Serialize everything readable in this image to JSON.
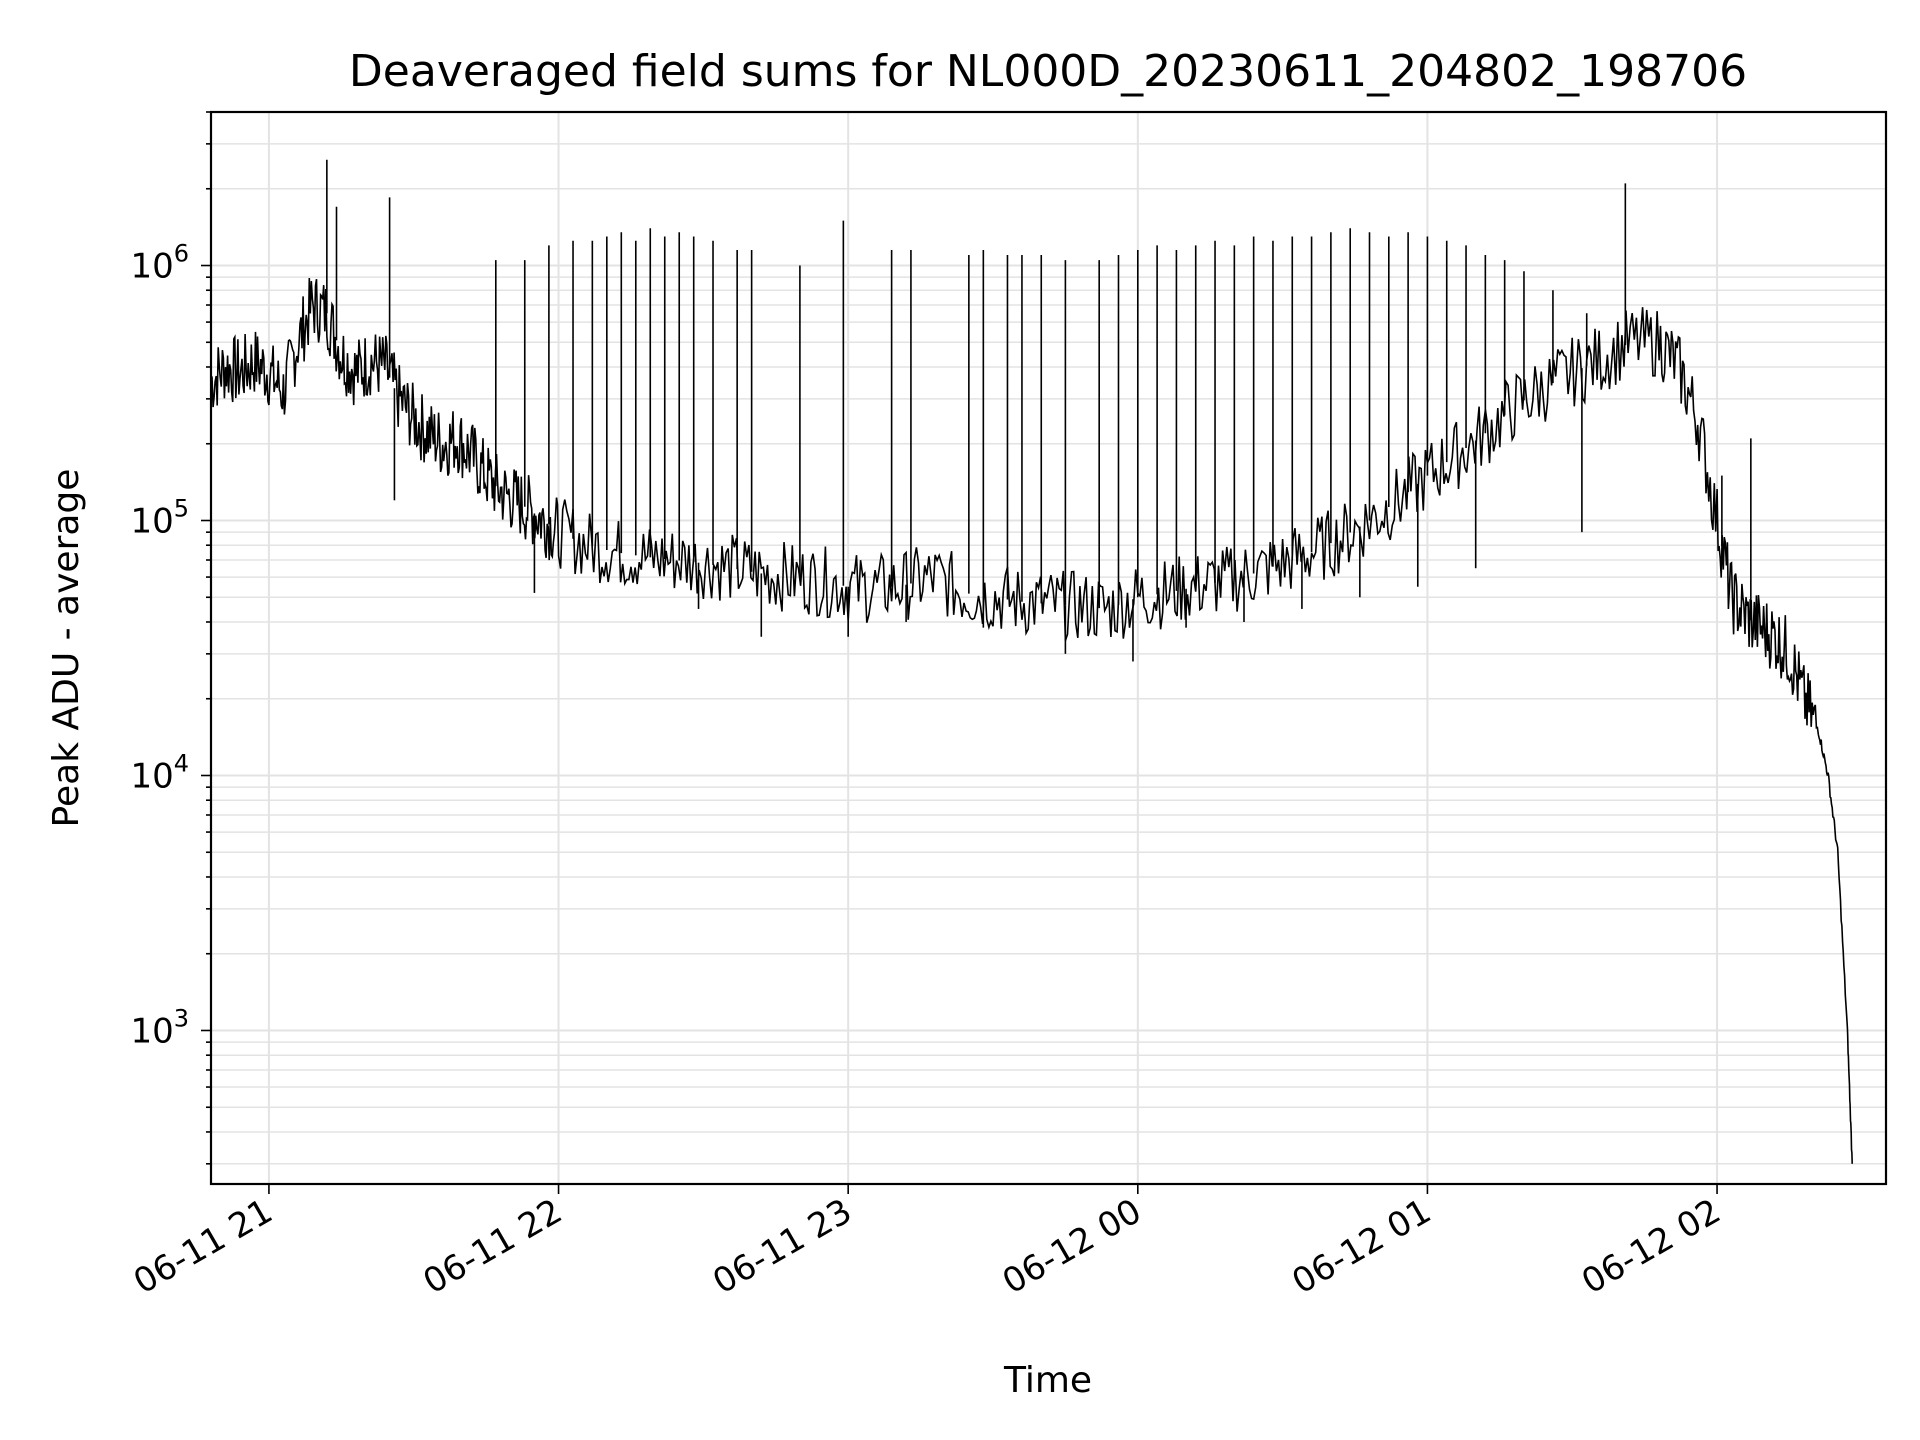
{
  "chart_data": {
    "type": "line",
    "title": "Deaveraged field sums for NL000D_20230611_204802_198706",
    "xlabel": "Time",
    "ylabel": "Peak ADU - average",
    "y_scale": "log",
    "ylim": [
      250,
      4000000
    ],
    "xlim": [
      "2023-06-11 20:48",
      "2023-06-12 02:35"
    ],
    "grid": true,
    "x_ticks": [
      {
        "value": "2023-06-11 21:00",
        "label": "06-11 21"
      },
      {
        "value": "2023-06-11 22:00",
        "label": "06-11 22"
      },
      {
        "value": "2023-06-11 23:00",
        "label": "06-11 23"
      },
      {
        "value": "2023-06-12 00:00",
        "label": "06-12 00"
      },
      {
        "value": "2023-06-12 01:00",
        "label": "06-12 01"
      },
      {
        "value": "2023-06-12 02:00",
        "label": "06-12 02"
      }
    ],
    "y_ticks": [
      {
        "value": 1000,
        "base": "10",
        "exp": "3"
      },
      {
        "value": 10000,
        "base": "10",
        "exp": "4"
      },
      {
        "value": 100000,
        "base": "10",
        "exp": "5"
      },
      {
        "value": 1000000,
        "base": "10",
        "exp": "6"
      }
    ],
    "series": [
      {
        "color": "#000000",
        "points": [
          [
            "2023-06-11 20:48",
            350000
          ],
          [
            "2023-06-11 20:51",
            400000
          ],
          [
            "2023-06-11 20:54",
            380000
          ],
          [
            "2023-06-11 20:57",
            420000
          ],
          [
            "2023-06-11 21:00",
            380000
          ],
          [
            "2023-06-11 21:03",
            320000
          ],
          [
            "2023-06-11 21:06",
            500000
          ],
          [
            "2023-06-11 21:09",
            700000
          ],
          [
            "2023-06-11 21:12",
            650000
          ],
          [
            "2023-06-11 21:15",
            450000
          ],
          [
            "2023-06-11 21:18",
            380000
          ],
          [
            "2023-06-11 21:21",
            420000
          ],
          [
            "2023-06-11 21:24",
            400000
          ],
          [
            "2023-06-11 21:27",
            300000
          ],
          [
            "2023-06-11 21:30",
            250000
          ],
          [
            "2023-06-11 21:33",
            220000
          ],
          [
            "2023-06-11 21:36",
            200000
          ],
          [
            "2023-06-11 21:39",
            210000
          ],
          [
            "2023-06-11 21:42",
            180000
          ],
          [
            "2023-06-11 21:45",
            150000
          ],
          [
            "2023-06-11 21:48",
            130000
          ],
          [
            "2023-06-11 21:51",
            120000
          ],
          [
            "2023-06-11 21:54",
            110000
          ],
          [
            "2023-06-11 21:57",
            100000
          ],
          [
            "2023-06-11 22:00",
            90000
          ],
          [
            "2023-06-11 22:06",
            80000
          ],
          [
            "2023-06-11 22:12",
            75000
          ],
          [
            "2023-06-11 22:18",
            72000
          ],
          [
            "2023-06-11 22:24",
            70000
          ],
          [
            "2023-06-11 22:30",
            68000
          ],
          [
            "2023-06-11 22:36",
            65000
          ],
          [
            "2023-06-11 22:42",
            62000
          ],
          [
            "2023-06-11 22:48",
            60000
          ],
          [
            "2023-06-11 22:54",
            58000
          ],
          [
            "2023-06-11 23:00",
            55000
          ],
          [
            "2023-06-11 23:06",
            54000
          ],
          [
            "2023-06-11 23:12",
            56000
          ],
          [
            "2023-06-11 23:18",
            60000
          ],
          [
            "2023-06-11 23:24",
            52000
          ],
          [
            "2023-06-11 23:30",
            50000
          ],
          [
            "2023-06-11 23:36",
            48000
          ],
          [
            "2023-06-11 23:42",
            47000
          ],
          [
            "2023-06-11 23:48",
            46000
          ],
          [
            "2023-06-11 23:54",
            45000
          ],
          [
            "2023-06-12 00:00",
            50000
          ],
          [
            "2023-06-12 00:06",
            52000
          ],
          [
            "2023-06-12 00:12",
            55000
          ],
          [
            "2023-06-12 00:18",
            58000
          ],
          [
            "2023-06-12 00:24",
            62000
          ],
          [
            "2023-06-12 00:30",
            68000
          ],
          [
            "2023-06-12 00:36",
            75000
          ],
          [
            "2023-06-12 00:42",
            85000
          ],
          [
            "2023-06-12 00:48",
            100000
          ],
          [
            "2023-06-12 00:54",
            120000
          ],
          [
            "2023-06-12 01:00",
            150000
          ],
          [
            "2023-06-12 01:06",
            180000
          ],
          [
            "2023-06-12 01:12",
            220000
          ],
          [
            "2023-06-12 01:18",
            280000
          ],
          [
            "2023-06-12 01:24",
            330000
          ],
          [
            "2023-06-12 01:30",
            380000
          ],
          [
            "2023-06-12 01:36",
            430000
          ],
          [
            "2023-06-12 01:42",
            500000
          ],
          [
            "2023-06-12 01:48",
            500000
          ],
          [
            "2023-06-12 01:52",
            400000
          ],
          [
            "2023-06-12 01:56",
            250000
          ],
          [
            "2023-06-12 02:00",
            100000
          ],
          [
            "2023-06-12 02:03",
            50000
          ],
          [
            "2023-06-12 02:06",
            42000
          ],
          [
            "2023-06-12 02:09",
            38000
          ],
          [
            "2023-06-12 02:12",
            35000
          ],
          [
            "2023-06-12 02:15",
            30000
          ],
          [
            "2023-06-12 02:18",
            20000
          ],
          [
            "2023-06-12 02:21",
            15000
          ],
          [
            "2023-06-12 02:23",
            10000
          ],
          [
            "2023-06-12 02:25",
            5000
          ],
          [
            "2023-06-12 02:27",
            1000
          ],
          [
            "2023-06-12 02:28",
            300
          ]
        ],
        "spikes": [
          [
            "2023-06-11 21:12",
            2600000
          ],
          [
            "2023-06-11 21:14",
            1700000
          ],
          [
            "2023-06-11 21:25",
            1850000
          ],
          [
            "2023-06-11 21:47",
            1050000
          ],
          [
            "2023-06-11 21:53",
            1050000
          ],
          [
            "2023-06-11 21:58",
            1200000
          ],
          [
            "2023-06-11 22:03",
            1250000
          ],
          [
            "2023-06-11 22:07",
            1250000
          ],
          [
            "2023-06-11 22:10",
            1300000
          ],
          [
            "2023-06-11 22:13",
            1350000
          ],
          [
            "2023-06-11 22:16",
            1250000
          ],
          [
            "2023-06-11 22:19",
            1400000
          ],
          [
            "2023-06-11 22:22",
            1300000
          ],
          [
            "2023-06-11 22:25",
            1350000
          ],
          [
            "2023-06-11 22:28",
            1300000
          ],
          [
            "2023-06-11 22:32",
            1250000
          ],
          [
            "2023-06-11 22:37",
            1150000
          ],
          [
            "2023-06-11 22:40",
            1150000
          ],
          [
            "2023-06-11 22:50",
            1000000
          ],
          [
            "2023-06-11 22:59",
            1500000
          ],
          [
            "2023-06-11 23:09",
            1150000
          ],
          [
            "2023-06-11 23:13",
            1150000
          ],
          [
            "2023-06-11 23:25",
            1100000
          ],
          [
            "2023-06-11 23:28",
            1150000
          ],
          [
            "2023-06-11 23:33",
            1100000
          ],
          [
            "2023-06-11 23:36",
            1100000
          ],
          [
            "2023-06-11 23:40",
            1100000
          ],
          [
            "2023-06-11 23:45",
            1050000
          ],
          [
            "2023-06-11 23:52",
            1050000
          ],
          [
            "2023-06-11 23:56",
            1100000
          ],
          [
            "2023-06-12 00:00",
            1150000
          ],
          [
            "2023-06-12 00:04",
            1200000
          ],
          [
            "2023-06-12 00:08",
            1150000
          ],
          [
            "2023-06-12 00:12",
            1200000
          ],
          [
            "2023-06-12 00:16",
            1250000
          ],
          [
            "2023-06-12 00:20",
            1200000
          ],
          [
            "2023-06-12 00:24",
            1300000
          ],
          [
            "2023-06-12 00:28",
            1250000
          ],
          [
            "2023-06-12 00:32",
            1300000
          ],
          [
            "2023-06-12 00:36",
            1300000
          ],
          [
            "2023-06-12 00:40",
            1350000
          ],
          [
            "2023-06-12 00:44",
            1400000
          ],
          [
            "2023-06-12 00:48",
            1350000
          ],
          [
            "2023-06-12 00:52",
            1300000
          ],
          [
            "2023-06-12 00:56",
            1350000
          ],
          [
            "2023-06-12 01:00",
            1300000
          ],
          [
            "2023-06-12 01:04",
            1250000
          ],
          [
            "2023-06-12 01:08",
            1200000
          ],
          [
            "2023-06-12 01:12",
            1100000
          ],
          [
            "2023-06-12 01:16",
            1050000
          ],
          [
            "2023-06-12 01:20",
            950000
          ],
          [
            "2023-06-12 01:26",
            800000
          ],
          [
            "2023-06-12 01:33",
            650000
          ],
          [
            "2023-06-12 01:41",
            2100000
          ],
          [
            "2023-06-12 02:01",
            150000
          ],
          [
            "2023-06-12 02:07",
            210000
          ]
        ],
        "dips": [
          [
            "2023-06-11 21:26",
            120000
          ],
          [
            "2023-06-11 21:55",
            52000
          ],
          [
            "2023-06-11 22:29",
            45000
          ],
          [
            "2023-06-11 22:42",
            35000
          ],
          [
            "2023-06-11 23:00",
            35000
          ],
          [
            "2023-06-11 23:12",
            40000
          ],
          [
            "2023-06-11 23:28",
            38000
          ],
          [
            "2023-06-11 23:45",
            30000
          ],
          [
            "2023-06-11 23:59",
            28000
          ],
          [
            "2023-06-12 00:10",
            38000
          ],
          [
            "2023-06-12 00:22",
            40000
          ],
          [
            "2023-06-12 00:34",
            45000
          ],
          [
            "2023-06-12 00:46",
            50000
          ],
          [
            "2023-06-12 00:58",
            55000
          ],
          [
            "2023-06-12 01:10",
            65000
          ],
          [
            "2023-06-12 01:32",
            90000
          ]
        ]
      }
    ]
  }
}
